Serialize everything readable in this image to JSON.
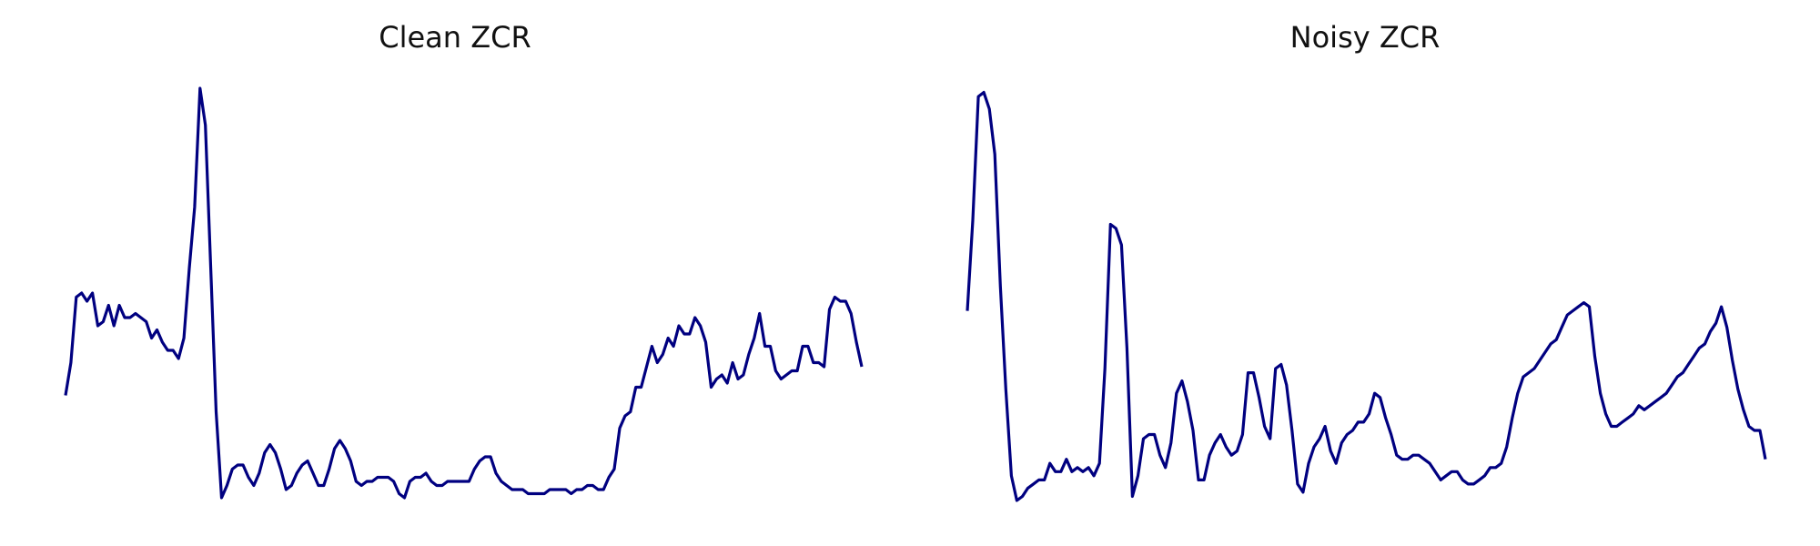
{
  "colors": {
    "line": "#000080",
    "background": "#ffffff"
  },
  "chart_data": [
    {
      "type": "line",
      "title": "Clean ZCR",
      "axes_visible": false,
      "grid": false,
      "xlabel": "",
      "ylabel": "",
      "ylim": [
        0,
        1
      ],
      "series": [
        {
          "values": [
            0.25,
            0.33,
            0.49,
            0.5,
            0.48,
            0.5,
            0.42,
            0.43,
            0.47,
            0.42,
            0.47,
            0.44,
            0.44,
            0.45,
            0.44,
            0.43,
            0.39,
            0.41,
            0.38,
            0.36,
            0.36,
            0.34,
            0.39,
            0.56,
            0.71,
            1.0,
            0.91,
            0.56,
            0.21,
            0.0,
            0.03,
            0.07,
            0.08,
            0.08,
            0.05,
            0.03,
            0.06,
            0.11,
            0.13,
            0.11,
            0.07,
            0.02,
            0.03,
            0.06,
            0.08,
            0.09,
            0.06,
            0.03,
            0.03,
            0.07,
            0.12,
            0.14,
            0.12,
            0.09,
            0.04,
            0.03,
            0.04,
            0.04,
            0.05,
            0.05,
            0.05,
            0.04,
            0.01,
            0.0,
            0.04,
            0.05,
            0.05,
            0.06,
            0.04,
            0.03,
            0.03,
            0.04,
            0.04,
            0.04,
            0.04,
            0.04,
            0.07,
            0.09,
            0.1,
            0.1,
            0.06,
            0.04,
            0.03,
            0.02,
            0.02,
            0.02,
            0.01,
            0.01,
            0.01,
            0.01,
            0.02,
            0.02,
            0.02,
            0.02,
            0.01,
            0.02,
            0.02,
            0.03,
            0.03,
            0.02,
            0.02,
            0.05,
            0.07,
            0.17,
            0.2,
            0.21,
            0.27,
            0.27,
            0.32,
            0.37,
            0.33,
            0.35,
            0.39,
            0.37,
            0.42,
            0.4,
            0.4,
            0.44,
            0.42,
            0.38,
            0.27,
            0.29,
            0.3,
            0.28,
            0.33,
            0.29,
            0.3,
            0.35,
            0.39,
            0.45,
            0.37,
            0.37,
            0.31,
            0.29,
            0.3,
            0.31,
            0.31,
            0.37,
            0.37,
            0.33,
            0.33,
            0.32,
            0.46,
            0.49,
            0.48,
            0.48,
            0.45,
            0.38,
            0.32
          ]
        }
      ]
    },
    {
      "type": "line",
      "title": "Noisy ZCR",
      "axes_visible": false,
      "grid": false,
      "xlabel": "",
      "ylabel": "",
      "ylim": [
        0,
        1
      ],
      "series": [
        {
          "values": [
            0.46,
            0.68,
            0.98,
            0.99,
            0.95,
            0.84,
            0.52,
            0.27,
            0.06,
            0.0,
            0.01,
            0.03,
            0.04,
            0.05,
            0.05,
            0.09,
            0.07,
            0.07,
            0.1,
            0.07,
            0.08,
            0.07,
            0.08,
            0.06,
            0.09,
            0.32,
            0.67,
            0.66,
            0.62,
            0.37,
            0.01,
            0.06,
            0.15,
            0.16,
            0.16,
            0.11,
            0.08,
            0.14,
            0.26,
            0.29,
            0.24,
            0.17,
            0.05,
            0.05,
            0.11,
            0.14,
            0.16,
            0.13,
            0.11,
            0.12,
            0.16,
            0.31,
            0.31,
            0.25,
            0.18,
            0.15,
            0.32,
            0.33,
            0.28,
            0.17,
            0.04,
            0.02,
            0.09,
            0.13,
            0.15,
            0.18,
            0.12,
            0.09,
            0.14,
            0.16,
            0.17,
            0.19,
            0.19,
            0.21,
            0.26,
            0.25,
            0.2,
            0.16,
            0.11,
            0.1,
            0.1,
            0.11,
            0.11,
            0.1,
            0.09,
            0.07,
            0.05,
            0.06,
            0.07,
            0.07,
            0.05,
            0.04,
            0.04,
            0.05,
            0.06,
            0.08,
            0.08,
            0.09,
            0.13,
            0.2,
            0.26,
            0.3,
            0.31,
            0.32,
            0.34,
            0.36,
            0.38,
            0.39,
            0.42,
            0.45,
            0.46,
            0.47,
            0.48,
            0.47,
            0.35,
            0.26,
            0.21,
            0.18,
            0.18,
            0.19,
            0.2,
            0.21,
            0.23,
            0.22,
            0.23,
            0.24,
            0.25,
            0.26,
            0.28,
            0.3,
            0.31,
            0.33,
            0.35,
            0.37,
            0.38,
            0.41,
            0.43,
            0.47,
            0.42,
            0.34,
            0.27,
            0.22,
            0.18,
            0.17,
            0.17,
            0.1
          ]
        }
      ]
    }
  ]
}
